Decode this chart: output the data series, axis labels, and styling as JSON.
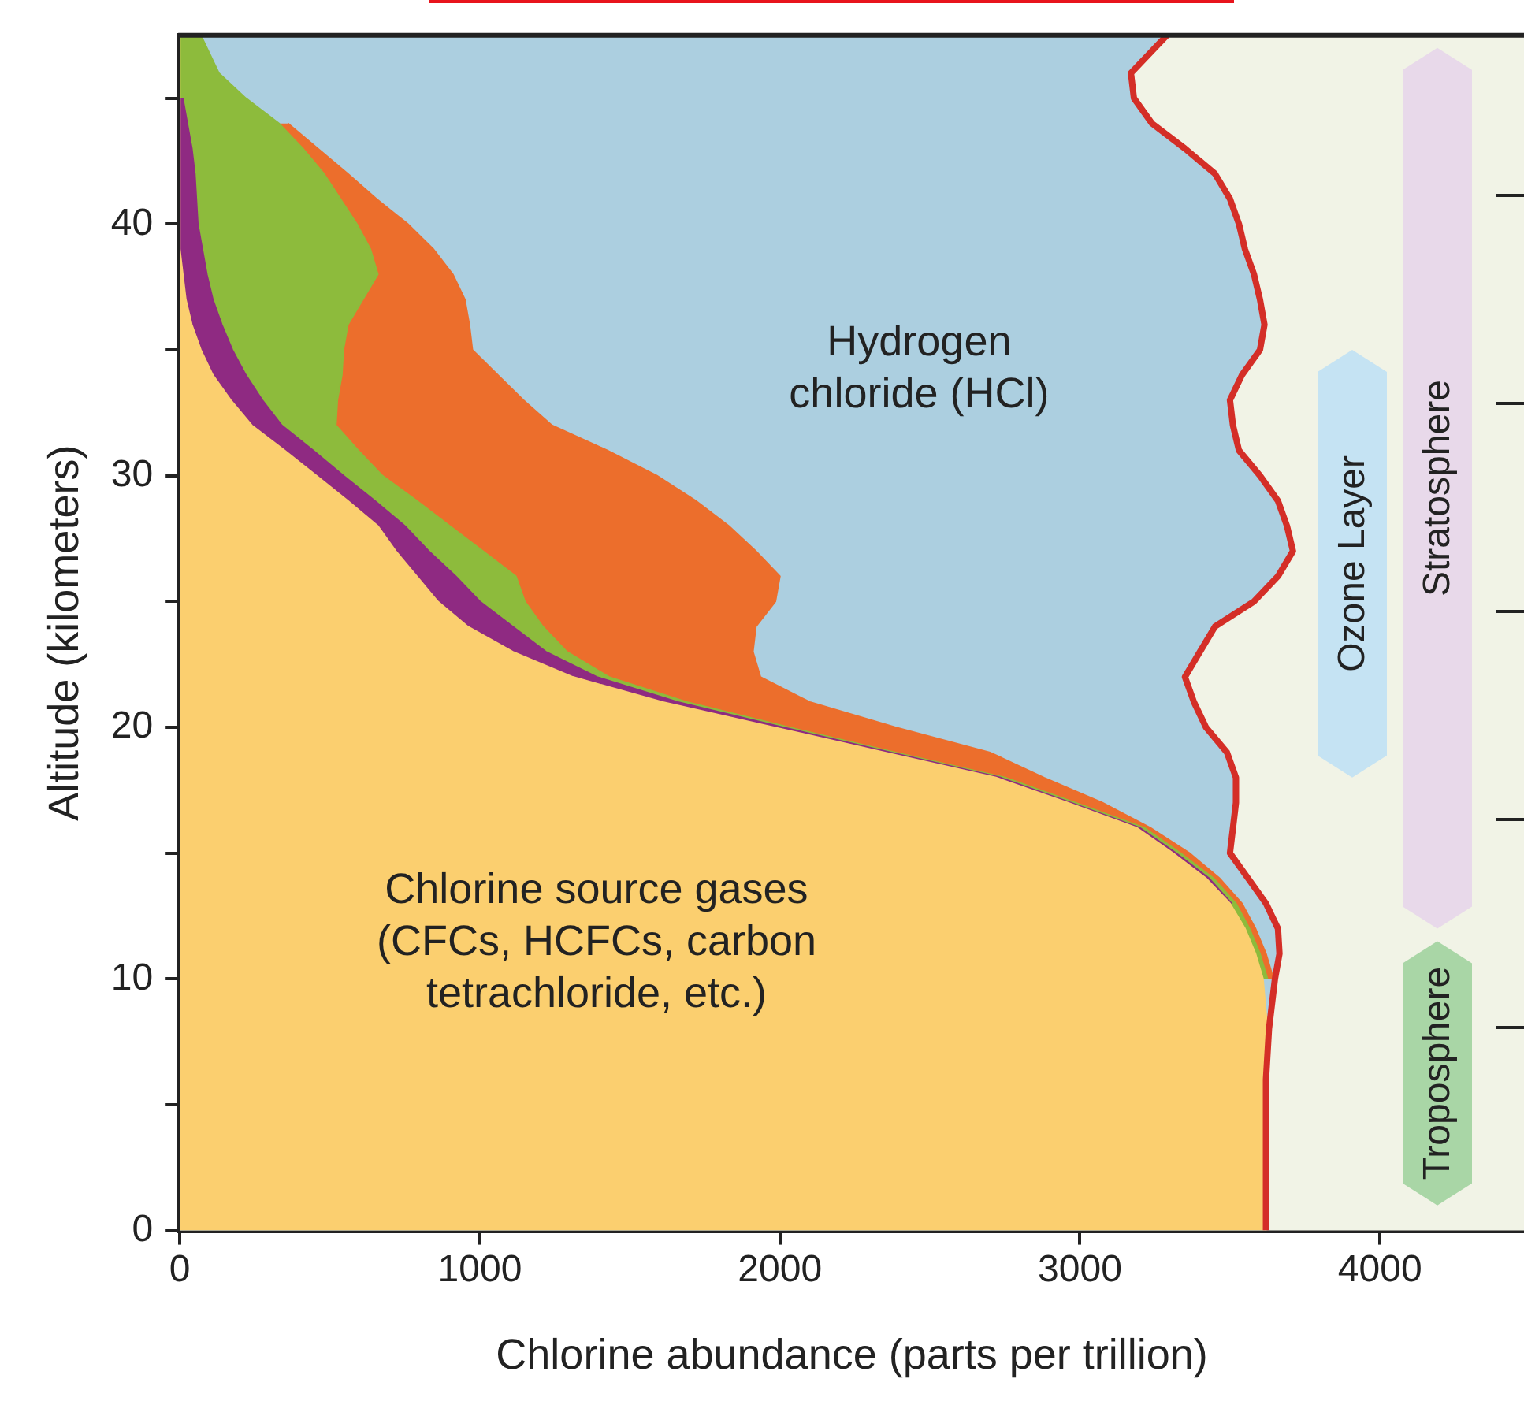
{
  "chart_data": {
    "type": "area",
    "orientation": "horizontal",
    "xlabel": "Chlorine abundance (parts per trillion)",
    "ylabel": "Altitude (kilometers)",
    "x": [
      0,
      2,
      4,
      6,
      8,
      10,
      11,
      12,
      13,
      14,
      15,
      16,
      17,
      18,
      19,
      20,
      21,
      22,
      23,
      24,
      25,
      26,
      27,
      28,
      29,
      30,
      31,
      32,
      33,
      34,
      35,
      36,
      37,
      38,
      39,
      40,
      41,
      42,
      43,
      44,
      45,
      46,
      47.5
    ],
    "series": [
      {
        "color": "#fbcf6f",
        "values": [
          3620,
          3620,
          3620,
          3620,
          3625,
          3610,
          3585,
          3550,
          3500,
          3420,
          3310,
          3190,
          2960,
          2720,
          2350,
          1980,
          1610,
          1310,
          1110,
          960,
          860,
          790,
          720,
          660,
          560,
          455,
          350,
          240,
          170,
          110,
          70,
          40,
          20,
          10,
          0,
          0,
          0,
          0,
          0,
          0,
          0,
          0,
          0
        ]
      },
      {
        "color": "#8f2a82",
        "values": [
          null,
          null,
          null,
          null,
          null,
          null,
          null,
          null,
          3505,
          3430,
          3320,
          3200,
          2970,
          2735,
          2370,
          2010,
          1660,
          1390,
          1220,
          1110,
          1000,
          920,
          830,
          750,
          650,
          545,
          445,
          340,
          275,
          220,
          175,
          140,
          110,
          90,
          75,
          60,
          55,
          50,
          40,
          25,
          10,
          null,
          null
        ]
      },
      {
        "color": "#8dbb3c",
        "values": [
          null,
          null,
          null,
          null,
          null,
          3625,
          3600,
          3565,
          3520,
          3445,
          3335,
          3215,
          2985,
          2750,
          2385,
          2030,
          1690,
          1430,
          1290,
          1210,
          1150,
          1120,
          1010,
          900,
          790,
          675,
          595,
          520,
          525,
          540,
          545,
          560,
          610,
          660,
          635,
          590,
          535,
          480,
          410,
          330,
          220,
          130,
          70
        ]
      },
      {
        "color": "#ec6e2c",
        "values": [
          null,
          null,
          null,
          null,
          null,
          3645,
          3620,
          3585,
          3540,
          3465,
          3365,
          3235,
          3075,
          2880,
          2700,
          2385,
          2100,
          1935,
          1910,
          1920,
          1985,
          2000,
          1920,
          1830,
          1720,
          1590,
          1425,
          1240,
          1145,
          1060,
          975,
          965,
          950,
          910,
          845,
          760,
          655,
          560,
          460,
          360,
          null,
          null,
          null
        ]
      },
      {
        "color": "#accfe0",
        "values": [
          3620,
          3620,
          3620,
          3620,
          3630,
          3650,
          3665,
          3660,
          3620,
          3560,
          3500,
          3510,
          3520,
          3520,
          3490,
          3420,
          3380,
          3350,
          3400,
          3450,
          3580,
          3660,
          3710,
          3690,
          3660,
          3600,
          3530,
          3510,
          3500,
          3540,
          3600,
          3615,
          3600,
          3580,
          3550,
          3530,
          3500,
          3450,
          3350,
          3240,
          3180,
          3170,
          3290
        ]
      },
      {
        "type": "line",
        "color": "#d42e27",
        "values": [
          3620,
          3620,
          3620,
          3620,
          3630,
          3650,
          3665,
          3660,
          3620,
          3560,
          3500,
          3510,
          3520,
          3520,
          3490,
          3420,
          3380,
          3350,
          3400,
          3450,
          3580,
          3660,
          3710,
          3690,
          3660,
          3600,
          3530,
          3510,
          3500,
          3540,
          3600,
          3615,
          3600,
          3580,
          3550,
          3530,
          3500,
          3450,
          3350,
          3240,
          3180,
          3170,
          3290
        ]
      }
    ],
    "xlim": [
      0,
      4480
    ],
    "xticks": [
      0,
      1000,
      2000,
      3000,
      4000
    ],
    "ylim": [
      0,
      47.5
    ],
    "yticks": [
      0,
      {
        "value": 5,
        "label": null
      },
      10,
      {
        "value": 15,
        "label": null
      },
      20,
      {
        "value": 25,
        "label": null
      },
      30,
      {
        "value": 35,
        "label": null
      },
      40,
      {
        "value": 45,
        "label": null
      }
    ],
    "annotations": [
      "Hydrogen\nchloride (HCl)",
      "Chlorine source gases\n(CFCs, HCFCs, carbon\ntetrachloride, etc.)"
    ],
    "bands": [
      {
        "axis": "y",
        "from": 12,
        "to": 47,
        "label": "Stratosphere",
        "color": "#e8d9ea"
      },
      {
        "axis": "y",
        "from": 1,
        "to": 11.5,
        "label": "Troposphere",
        "color": "#a9d6a6"
      },
      {
        "axis": "y",
        "from": 18,
        "to": 35,
        "label": "Ozone Layer",
        "color": "#c5e3f3"
      }
    ]
  }
}
